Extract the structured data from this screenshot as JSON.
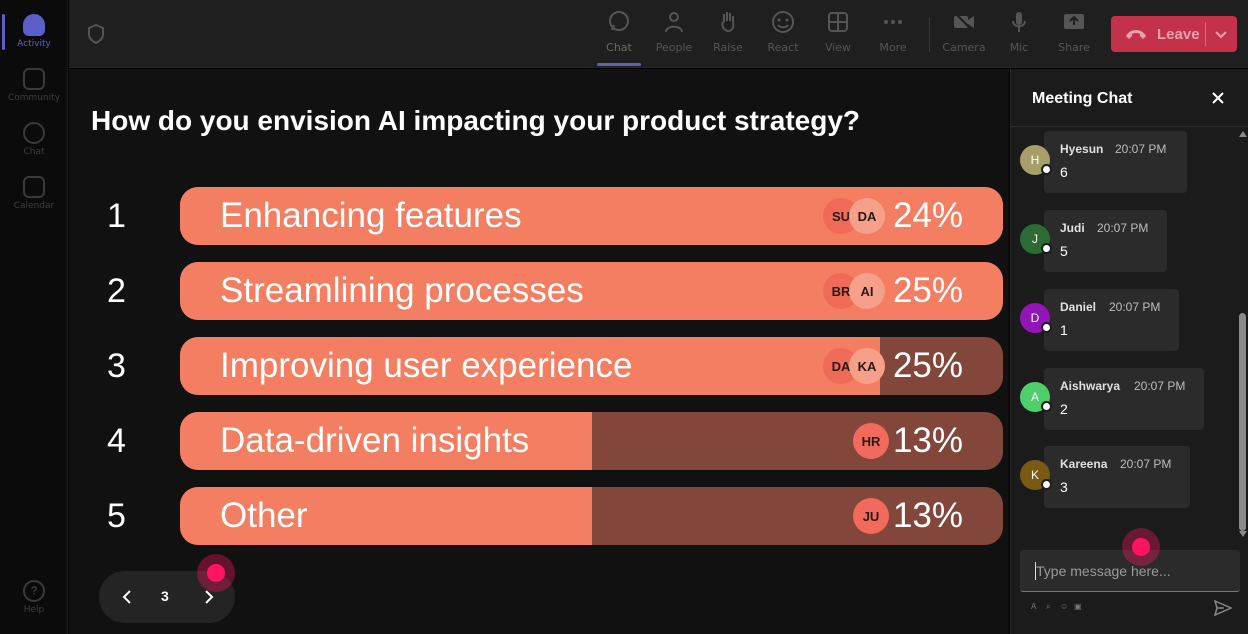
{
  "rail": {
    "items": [
      {
        "label": "Activity",
        "active": true
      },
      {
        "label": "Community"
      },
      {
        "label": "Chat"
      },
      {
        "label": "Calendar"
      }
    ],
    "help_label": "Help"
  },
  "toolbar": {
    "chat": "Chat",
    "people": "People",
    "raise": "Raise",
    "react": "React",
    "view": "View",
    "more": "More",
    "camera": "Camera",
    "mic": "Mic",
    "share": "Share",
    "leave": "Leave"
  },
  "poll": {
    "question": "How do you envision AI impacting your product strategy?",
    "options": [
      {
        "num": "1",
        "label": "Enhancing features",
        "percent": "24%",
        "fill": 1.0,
        "avatars": [
          "SU",
          "DA"
        ]
      },
      {
        "num": "2",
        "label": "Streamlining processes",
        "percent": "25%",
        "fill": 1.0,
        "avatars": [
          "BR",
          "AI"
        ]
      },
      {
        "num": "3",
        "label": "Improving user experience",
        "percent": "25%",
        "fill": 0.85,
        "avatars": [
          "DA",
          "KA"
        ]
      },
      {
        "num": "4",
        "label": "Data-driven insights",
        "percent": "13%",
        "fill": 0.5,
        "avatars": [
          "HR"
        ]
      },
      {
        "num": "5",
        "label": "Other",
        "percent": "13%",
        "fill": 0.5,
        "avatars": [
          "JU"
        ]
      }
    ],
    "page": "3"
  },
  "chat": {
    "title": "Meeting Chat",
    "messages": [
      {
        "initial": "H",
        "name": "Hyesun",
        "time": "20:07 PM",
        "text": "6",
        "color": "#a79f6a"
      },
      {
        "initial": "J",
        "name": "Judi",
        "time": "20:07 PM",
        "text": "5",
        "color": "#2d6b35"
      },
      {
        "initial": "D",
        "name": "Daniel",
        "time": "20:07 PM",
        "text": "1",
        "color": "#9315b8"
      },
      {
        "initial": "A",
        "name": "Aishwarya",
        "time": "20:07 PM",
        "text": "2",
        "color": "#4fcf6c"
      },
      {
        "initial": "K",
        "name": "Kareena",
        "time": "20:07 PM",
        "text": "3",
        "color": "#7a5a12"
      }
    ],
    "input_placeholder": "Type message here..."
  },
  "colors": {
    "bar_fill": "#f47e62",
    "bar_track": "#82473a",
    "leave_button": "#c4314b",
    "accent": "#5b5fc7",
    "click_marker": "#ff1464"
  }
}
